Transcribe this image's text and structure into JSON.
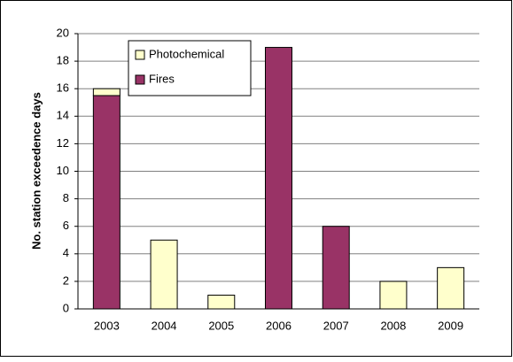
{
  "chart_data": {
    "type": "stacked_bar",
    "y_label": "No. station exceedence days",
    "categories": [
      "2003",
      "2004",
      "2005",
      "2006",
      "2007",
      "2008",
      "2009"
    ],
    "series": [
      {
        "name": "Fires",
        "color": "#993366",
        "values": [
          15.5,
          0,
          0,
          19,
          6,
          0,
          0
        ]
      },
      {
        "name": "Photochemical",
        "color": "#ffffcc",
        "values": [
          0.5,
          5,
          1,
          0,
          0,
          2,
          3
        ]
      }
    ],
    "ylim": [
      0,
      20
    ],
    "yticks": [
      0,
      2,
      4,
      6,
      8,
      10,
      12,
      14,
      16,
      18,
      20
    ],
    "grid": true
  }
}
